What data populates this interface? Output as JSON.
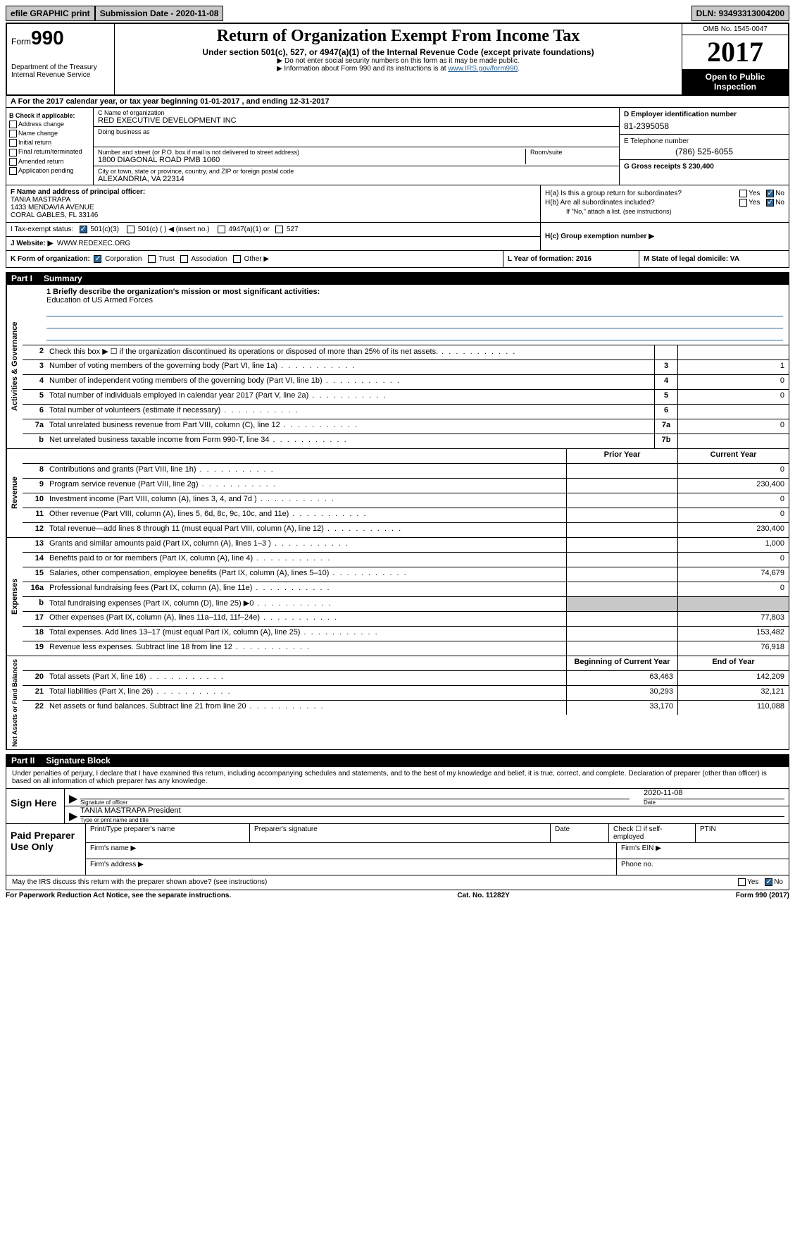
{
  "topbar": {
    "efile": "efile GRAPHIC print",
    "submission": "Submission Date - 2020-11-08",
    "dln": "DLN: 93493313004200"
  },
  "header": {
    "form_word": "Form",
    "form_num": "990",
    "dept": "Department of the Treasury",
    "irs": "Internal Revenue Service",
    "title": "Return of Organization Exempt From Income Tax",
    "subtitle": "Under section 501(c), 527, or 4947(a)(1) of the Internal Revenue Code (except private foundations)",
    "note1": "▶ Do not enter social security numbers on this form as it may be made public.",
    "note2": "▶ Information about Form 990 and its instructions is at ",
    "note2_link": "www.IRS.gov/form990",
    "omb": "OMB No. 1545-0047",
    "year": "2017",
    "open": "Open to Public Inspection"
  },
  "rowA": "A For the 2017 calendar year, or tax year beginning 01-01-2017   , and ending 12-31-2017",
  "boxB": {
    "label": "B Check if applicable:",
    "opts": [
      "Address change",
      "Name change",
      "Initial return",
      "Final return/terminated",
      "Amended return",
      "Application pending"
    ]
  },
  "boxC": {
    "name_label": "C Name of organization",
    "name": "RED EXECUTIVE DEVELOPMENT INC",
    "dba_label": "Doing business as",
    "street_label": "Number and street (or P.O. box if mail is not delivered to street address)",
    "suite_label": "Room/suite",
    "street": "1800 DIAGONAL ROAD PMB 1060",
    "city_label": "City or town, state or province, country, and ZIP or foreign postal code",
    "city": "ALEXANDRIA, VA  22314"
  },
  "boxD": {
    "ein_label": "D Employer identification number",
    "ein": "81-2395058",
    "phone_label": "E Telephone number",
    "phone": "(786) 525-6055",
    "gross_label": "G Gross receipts $ 230,400"
  },
  "boxF": {
    "label": "F  Name and address of principal officer:",
    "name": "TANIA MASTRAPA",
    "addr1": "1433 MENDAVIA AVENUE",
    "addr2": "CORAL GABLES, FL  33146"
  },
  "boxH": {
    "a": "H(a)  Is this a group return for subordinates?",
    "b": "H(b)  Are all subordinates included?",
    "note": "If \"No,\" attach a list. (see instructions)",
    "c": "H(c)  Group exemption number ▶"
  },
  "boxI": {
    "label": "I    Tax-exempt status:",
    "o1": "501(c)(3)",
    "o2": "501(c) (  ) ◀ (insert no.)",
    "o3": "4947(a)(1) or",
    "o4": "527"
  },
  "boxJ": {
    "label": "J   Website: ▶",
    "val": "WWW.REDEXEC.ORG"
  },
  "boxK": {
    "label": "K Form of organization:",
    "opts": [
      "Corporation",
      "Trust",
      "Association",
      "Other ▶"
    ]
  },
  "boxL": "L Year of formation: 2016",
  "boxM": "M State of legal domicile: VA",
  "part1": {
    "num": "Part I",
    "title": "Summary"
  },
  "mission": {
    "q": "1   Briefly describe the organization's mission or most significant activities:",
    "a": "Education of US Armed Forces"
  },
  "gov_rows": [
    {
      "n": "2",
      "d": "Check this box ▶ ☐  if the organization discontinued its operations or disposed of more than 25% of its net assets.",
      "box": "",
      "v": ""
    },
    {
      "n": "3",
      "d": "Number of voting members of the governing body (Part VI, line 1a)",
      "box": "3",
      "v": "1"
    },
    {
      "n": "4",
      "d": "Number of independent voting members of the governing body (Part VI, line 1b)",
      "box": "4",
      "v": "0"
    },
    {
      "n": "5",
      "d": "Total number of individuals employed in calendar year 2017 (Part V, line 2a)",
      "box": "5",
      "v": "0"
    },
    {
      "n": "6",
      "d": "Total number of volunteers (estimate if necessary)",
      "box": "6",
      "v": ""
    },
    {
      "n": "7a",
      "d": "Total unrelated business revenue from Part VIII, column (C), line 12",
      "box": "7a",
      "v": "0"
    },
    {
      "n": "b",
      "d": "Net unrelated business taxable income from Form 990-T, line 34",
      "box": "7b",
      "v": ""
    }
  ],
  "rev_hdr": {
    "py": "Prior Year",
    "cy": "Current Year"
  },
  "rev_rows": [
    {
      "n": "8",
      "d": "Contributions and grants (Part VIII, line 1h)",
      "py": "",
      "cy": "0"
    },
    {
      "n": "9",
      "d": "Program service revenue (Part VIII, line 2g)",
      "py": "",
      "cy": "230,400"
    },
    {
      "n": "10",
      "d": "Investment income (Part VIII, column (A), lines 3, 4, and 7d )",
      "py": "",
      "cy": "0"
    },
    {
      "n": "11",
      "d": "Other revenue (Part VIII, column (A), lines 5, 6d, 8c, 9c, 10c, and 11e)",
      "py": "",
      "cy": "0"
    },
    {
      "n": "12",
      "d": "Total revenue—add lines 8 through 11 (must equal Part VIII, column (A), line 12)",
      "py": "",
      "cy": "230,400"
    }
  ],
  "exp_rows": [
    {
      "n": "13",
      "d": "Grants and similar amounts paid (Part IX, column (A), lines 1–3 )",
      "py": "",
      "cy": "1,000"
    },
    {
      "n": "14",
      "d": "Benefits paid to or for members (Part IX, column (A), line 4)",
      "py": "",
      "cy": "0"
    },
    {
      "n": "15",
      "d": "Salaries, other compensation, employee benefits (Part IX, column (A), lines 5–10)",
      "py": "",
      "cy": "74,679"
    },
    {
      "n": "16a",
      "d": "Professional fundraising fees (Part IX, column (A), line 11e)",
      "py": "",
      "cy": "0"
    },
    {
      "n": "b",
      "d": "Total fundraising expenses (Part IX, column (D), line 25) ▶0",
      "py": "shade",
      "cy": "shade"
    },
    {
      "n": "17",
      "d": "Other expenses (Part IX, column (A), lines 11a–11d, 11f–24e)",
      "py": "",
      "cy": "77,803"
    },
    {
      "n": "18",
      "d": "Total expenses. Add lines 13–17 (must equal Part IX, column (A), line 25)",
      "py": "",
      "cy": "153,482"
    },
    {
      "n": "19",
      "d": "Revenue less expenses. Subtract line 18 from line 12",
      "py": "",
      "cy": "76,918"
    }
  ],
  "na_hdr": {
    "py": "Beginning of Current Year",
    "cy": "End of Year"
  },
  "na_rows": [
    {
      "n": "20",
      "d": "Total assets (Part X, line 16)",
      "py": "63,463",
      "cy": "142,209"
    },
    {
      "n": "21",
      "d": "Total liabilities (Part X, line 26)",
      "py": "30,293",
      "cy": "32,121"
    },
    {
      "n": "22",
      "d": "Net assets or fund balances. Subtract line 21 from line 20",
      "py": "33,170",
      "cy": "110,088"
    }
  ],
  "part2": {
    "num": "Part II",
    "title": "Signature Block"
  },
  "perjury": "Under penalties of perjury, I declare that I have examined this return, including accompanying schedules and statements, and to the best of my knowledge and belief, it is true, correct, and complete. Declaration of preparer (other than officer) is based on all information of which preparer has any knowledge.",
  "sign": {
    "label": "Sign Here",
    "sig_label": "Signature of officer",
    "date": "2020-11-08",
    "date_label": "Date",
    "name": "TANIA MASTRAPA  President",
    "name_label": "Type or print name and title"
  },
  "prep": {
    "label": "Paid Preparer Use Only",
    "h1": "Print/Type preparer's name",
    "h2": "Preparer's signature",
    "h3": "Date",
    "h4": "Check ☐ if self-employed",
    "h5": "PTIN",
    "firm_name": "Firm's name    ▶",
    "firm_ein": "Firm's EIN ▶",
    "firm_addr": "Firm's address ▶",
    "phone": "Phone no."
  },
  "discuss": {
    "q": "May the IRS discuss this return with the preparer shown above? (see instructions)",
    "yes": "Yes",
    "no": "No"
  },
  "footer": {
    "left": "For Paperwork Reduction Act Notice, see the separate instructions.",
    "mid": "Cat. No. 11282Y",
    "right": "Form 990 (2017)"
  },
  "side_labels": {
    "gov": "Activities & Governance",
    "rev": "Revenue",
    "exp": "Expenses",
    "na": "Net Assets or Fund Balances"
  }
}
